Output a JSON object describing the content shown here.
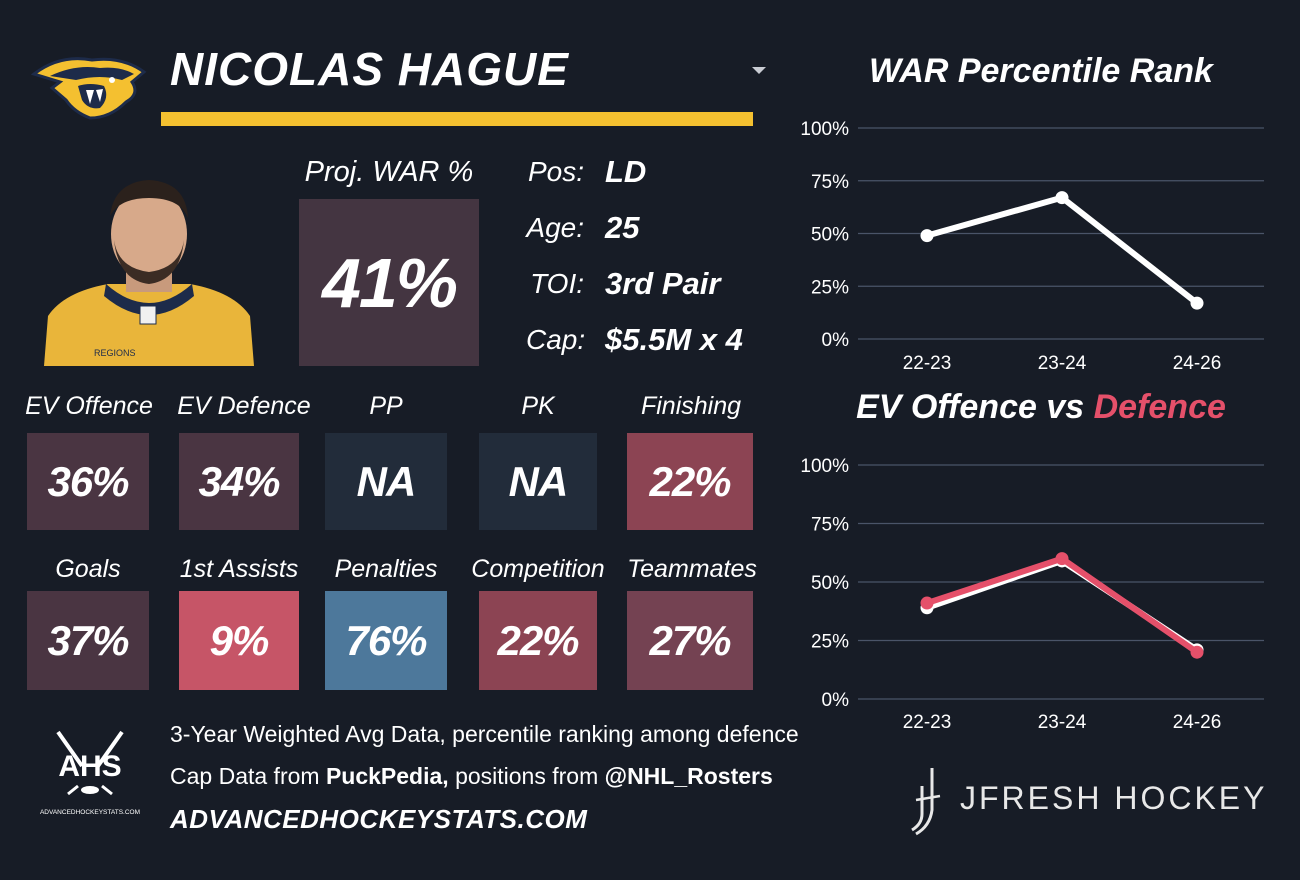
{
  "player": {
    "name": "NICOLAS HAGUE",
    "team_logo_icon": "predators-logo-icon",
    "photo_icon": "player-headshot"
  },
  "proj_war": {
    "label": "Proj. WAR %",
    "value": "41%",
    "color": "#443541"
  },
  "info": [
    {
      "label": "Pos:",
      "value": "LD"
    },
    {
      "label": "Age:",
      "value": "25"
    },
    {
      "label": "TOI:",
      "value": "3rd Pair"
    },
    {
      "label": "Cap:",
      "value": "$5.5M x 4"
    }
  ],
  "tiles_row1": [
    {
      "label": "EV Offence",
      "value": "36%",
      "color": "#4a3542"
    },
    {
      "label": "EV Defence",
      "value": "34%",
      "color": "#4a3542"
    },
    {
      "label": "PP",
      "value": "NA",
      "color": "#222c3a"
    },
    {
      "label": "PK",
      "value": "NA",
      "color": "#222c3a"
    },
    {
      "label": "Finishing",
      "value": "22%",
      "color": "#8c4453"
    }
  ],
  "tiles_row2": [
    {
      "label": "Goals",
      "value": "37%",
      "color": "#4a3542"
    },
    {
      "label": "1st Assists",
      "value": "9%",
      "color": "#c65567"
    },
    {
      "label": "Penalties",
      "value": "76%",
      "color": "#4d789b"
    },
    {
      "label": "Competition",
      "value": "22%",
      "color": "#8c4453"
    },
    {
      "label": "Teammates",
      "value": "27%",
      "color": "#744252"
    }
  ],
  "footer": {
    "line1": "3-Year Weighted Avg Data, percentile ranking among defence",
    "line2_prefix": "Cap Data from ",
    "line2_source1": "PuckPedia,",
    "line2_mid": " positions from ",
    "line2_source2": "@NHL_Rosters",
    "website": "ADVANCEDHOCKEYSTATS.COM",
    "ahs_logo_text": "AHS",
    "ahs_logo_subtext": "ADVANCEDHOCKEYSTATS.COM",
    "brand": "JFRESH HOCKEY"
  },
  "colors": {
    "accent": "#f4c030",
    "defence": "#e5506a",
    "background": "#171c26"
  },
  "chart_data": [
    {
      "type": "line",
      "title": "WAR Percentile Rank",
      "categories": [
        "22-23",
        "23-24",
        "24-26"
      ],
      "yticks": [
        "100%",
        "75%",
        "50%",
        "25%",
        "0%"
      ],
      "ylim": [
        0,
        100
      ],
      "grid": true,
      "series": [
        {
          "values": [
            49,
            67,
            17
          ],
          "color": "#ffffff"
        }
      ]
    },
    {
      "type": "line",
      "title_part1": "EV Offence vs ",
      "title_part2": "Defence",
      "categories": [
        "22-23",
        "23-24",
        "24-26"
      ],
      "yticks": [
        "100%",
        "75%",
        "50%",
        "25%",
        "0%"
      ],
      "ylim": [
        0,
        100
      ],
      "grid": true,
      "series": [
        {
          "name": "EV Offence",
          "values": [
            39,
            59,
            21
          ],
          "color": "#ffffff"
        },
        {
          "name": "Defence",
          "values": [
            41,
            60,
            20
          ],
          "color": "#e5506a"
        }
      ]
    }
  ]
}
